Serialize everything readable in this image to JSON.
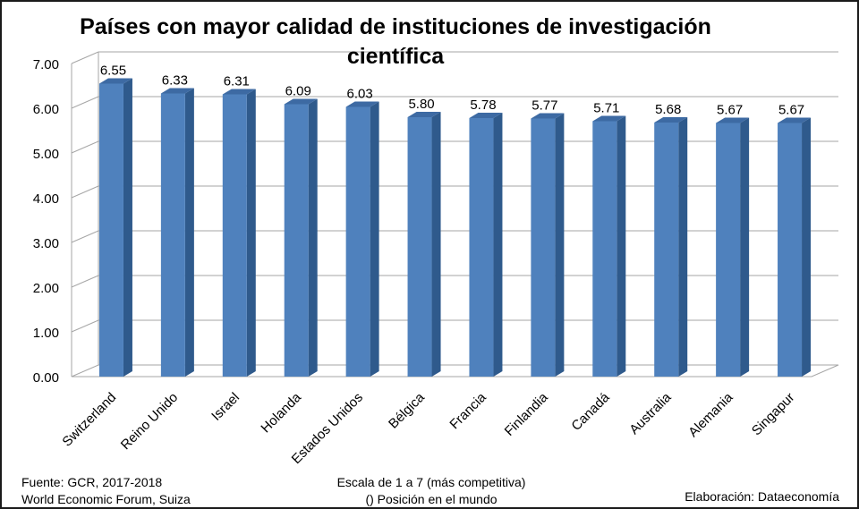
{
  "chart_data": {
    "type": "bar",
    "title": "Países con mayor calidad de instituciones de investigación científica",
    "categories": [
      "Switzerland",
      "Reino Unido",
      "Israel",
      "Holanda",
      "Estados Unidos",
      "Bélgica",
      "Francia",
      "Finlandia",
      "Canadá",
      "Australia",
      "Alemania",
      "Singapur"
    ],
    "values": [
      6.55,
      6.33,
      6.31,
      6.09,
      6.03,
      5.8,
      5.78,
      5.77,
      5.71,
      5.68,
      5.67,
      5.67
    ],
    "value_labels": [
      "6.55",
      "6.33",
      "6.31",
      "6.09",
      "6.03",
      "5.80",
      "5.78",
      "5.77",
      "5.71",
      "5.68",
      "5.67",
      "5.67"
    ],
    "yticks": [
      "0.00",
      "1.00",
      "2.00",
      "3.00",
      "4.00",
      "5.00",
      "6.00",
      "7.00"
    ],
    "ylim": [
      0,
      7
    ],
    "xlabel": "",
    "ylabel": "",
    "grid": true,
    "bar_style": "3d",
    "colors": {
      "bar_front": "#4f81bd",
      "bar_side": "#2f5a8c",
      "bar_top": "#3d6aa3",
      "grid": "#a6a6a6"
    }
  },
  "footer": {
    "source_line1": "Fuente:  GCR, 2017-2018",
    "source_line2": "World Economic Forum, Suiza",
    "scale_line1": "Escala de 1 a 7 (más competitiva)",
    "scale_line2": "() Posición en el mundo",
    "credit": "Elaboración: Dataeconomía"
  }
}
